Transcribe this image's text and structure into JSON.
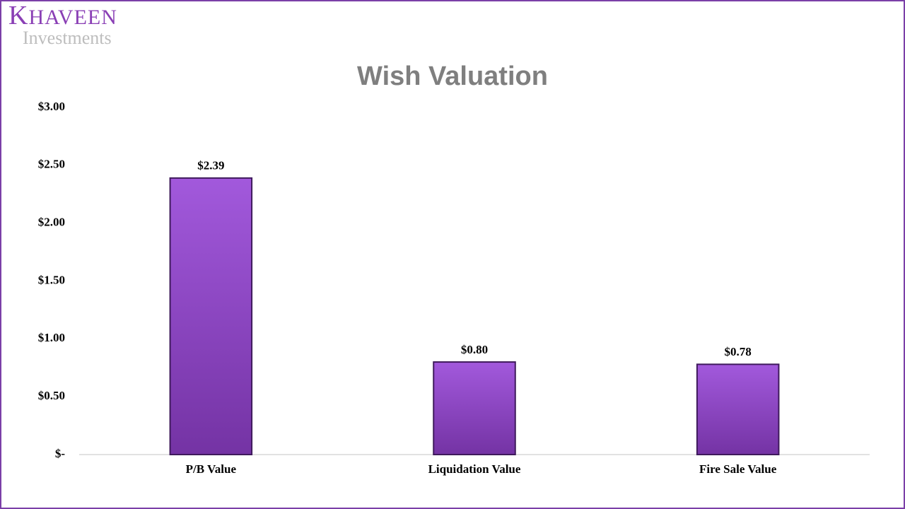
{
  "logo": {
    "name": "KHAVEEN",
    "tagline": "Investments"
  },
  "chart_data": {
    "type": "bar",
    "title": "Wish Valuation",
    "categories": [
      "P/B Value",
      "Liquidation Value",
      "Fire Sale Value"
    ],
    "values": [
      2.39,
      0.8,
      0.78
    ],
    "value_labels": [
      "$2.39",
      "$0.80",
      "$0.78"
    ],
    "color": "#a259dc",
    "ylim": [
      0,
      3
    ],
    "yticks": [
      {
        "value": 0,
        "label": "$-"
      },
      {
        "value": 0.5,
        "label": "$0.50"
      },
      {
        "value": 1,
        "label": "$1.00"
      },
      {
        "value": 1.5,
        "label": "$1.50"
      },
      {
        "value": 2,
        "label": "$2.00"
      },
      {
        "value": 2.5,
        "label": "$2.50"
      },
      {
        "value": 3,
        "label": "$3.00"
      }
    ],
    "grid": false
  }
}
